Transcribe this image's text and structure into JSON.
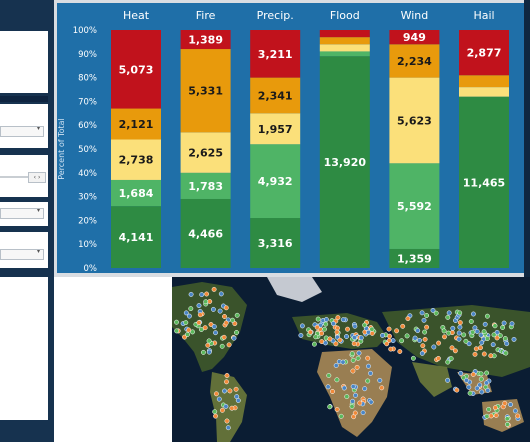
{
  "sidebar": {
    "dropdown_1": "",
    "dropdown_2": "",
    "dropdown_3": "",
    "dropdown_4": "",
    "range_nav": "‹ ›"
  },
  "chart_data": {
    "type": "bar",
    "stacked": true,
    "normalized": "percent",
    "ylabel": "Percent of Total",
    "ylim": [
      0,
      100
    ],
    "yticks": [
      "0%",
      "10%",
      "20%",
      "30%",
      "40%",
      "50%",
      "60%",
      "70%",
      "80%",
      "90%",
      "100%"
    ],
    "categories": [
      "Heat",
      "Fire",
      "Precip.",
      "Flood",
      "Wind",
      "Hail"
    ],
    "level_colors": [
      "#2e8b43",
      "#4fb466",
      "#fbe07a",
      "#e89a0c",
      "#c1121c"
    ],
    "bars": [
      {
        "category": "Heat",
        "segments": [
          {
            "level": 0,
            "pct": 26,
            "label": "4,141"
          },
          {
            "level": 1,
            "pct": 11,
            "label": "1,684"
          },
          {
            "level": 2,
            "pct": 17,
            "label": "2,738"
          },
          {
            "level": 3,
            "pct": 13,
            "label": "2,121"
          },
          {
            "level": 4,
            "pct": 33,
            "label": "5,073"
          }
        ]
      },
      {
        "category": "Fire",
        "segments": [
          {
            "level": 0,
            "pct": 29,
            "label": "4,466"
          },
          {
            "level": 1,
            "pct": 11,
            "label": "1,783"
          },
          {
            "level": 2,
            "pct": 17,
            "label": "2,625"
          },
          {
            "level": 3,
            "pct": 35,
            "label": "5,331"
          },
          {
            "level": 4,
            "pct": 8,
            "label": "1,389"
          }
        ]
      },
      {
        "category": "Precip.",
        "segments": [
          {
            "level": 0,
            "pct": 21,
            "label": "3,316"
          },
          {
            "level": 1,
            "pct": 31,
            "label": "4,932"
          },
          {
            "level": 2,
            "pct": 13,
            "label": "1,957"
          },
          {
            "level": 3,
            "pct": 15,
            "label": "2,341"
          },
          {
            "level": 4,
            "pct": 20,
            "label": "3,211"
          }
        ]
      },
      {
        "category": "Flood",
        "segments": [
          {
            "level": 0,
            "pct": 89,
            "label": "13,920"
          },
          {
            "level": 1,
            "pct": 2,
            "label": ""
          },
          {
            "level": 2,
            "pct": 3,
            "label": ""
          },
          {
            "level": 3,
            "pct": 3,
            "label": ""
          },
          {
            "level": 4,
            "pct": 3,
            "label": ""
          }
        ]
      },
      {
        "category": "Wind",
        "segments": [
          {
            "level": 0,
            "pct": 8,
            "label": "1,359"
          },
          {
            "level": 1,
            "pct": 36,
            "label": "5,592"
          },
          {
            "level": 2,
            "pct": 36,
            "label": "5,623"
          },
          {
            "level": 3,
            "pct": 14,
            "label": "2,234"
          },
          {
            "level": 4,
            "pct": 6,
            "label": "949"
          }
        ]
      },
      {
        "category": "Hail",
        "segments": [
          {
            "level": 0,
            "pct": 72,
            "label": "11,465"
          },
          {
            "level": 1,
            "pct": 0,
            "label": ""
          },
          {
            "level": 2,
            "pct": 4,
            "label": ""
          },
          {
            "level": 3,
            "pct": 5,
            "label": ""
          },
          {
            "level": 4,
            "pct": 19,
            "label": "2,877"
          }
        ]
      }
    ]
  },
  "map": {
    "marker_colors": [
      "#4b86c5",
      "#f08a3a",
      "#5cb85c"
    ]
  }
}
